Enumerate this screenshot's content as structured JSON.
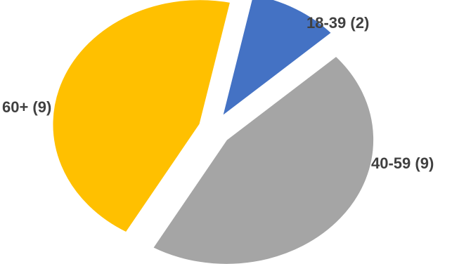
{
  "chart_data": {
    "type": "pie",
    "title": "",
    "exploded": true,
    "legend": "none",
    "slices": [
      {
        "label": "18-39 (2)",
        "category": "18-39",
        "value": 2,
        "color": "#4472C4"
      },
      {
        "label": "40-59 (9)",
        "category": "40-59",
        "value": 9,
        "color": "#A5A5A5"
      },
      {
        "label": "60+ (9)",
        "category": "60+",
        "value": 9,
        "color": "#FFC000"
      }
    ]
  }
}
